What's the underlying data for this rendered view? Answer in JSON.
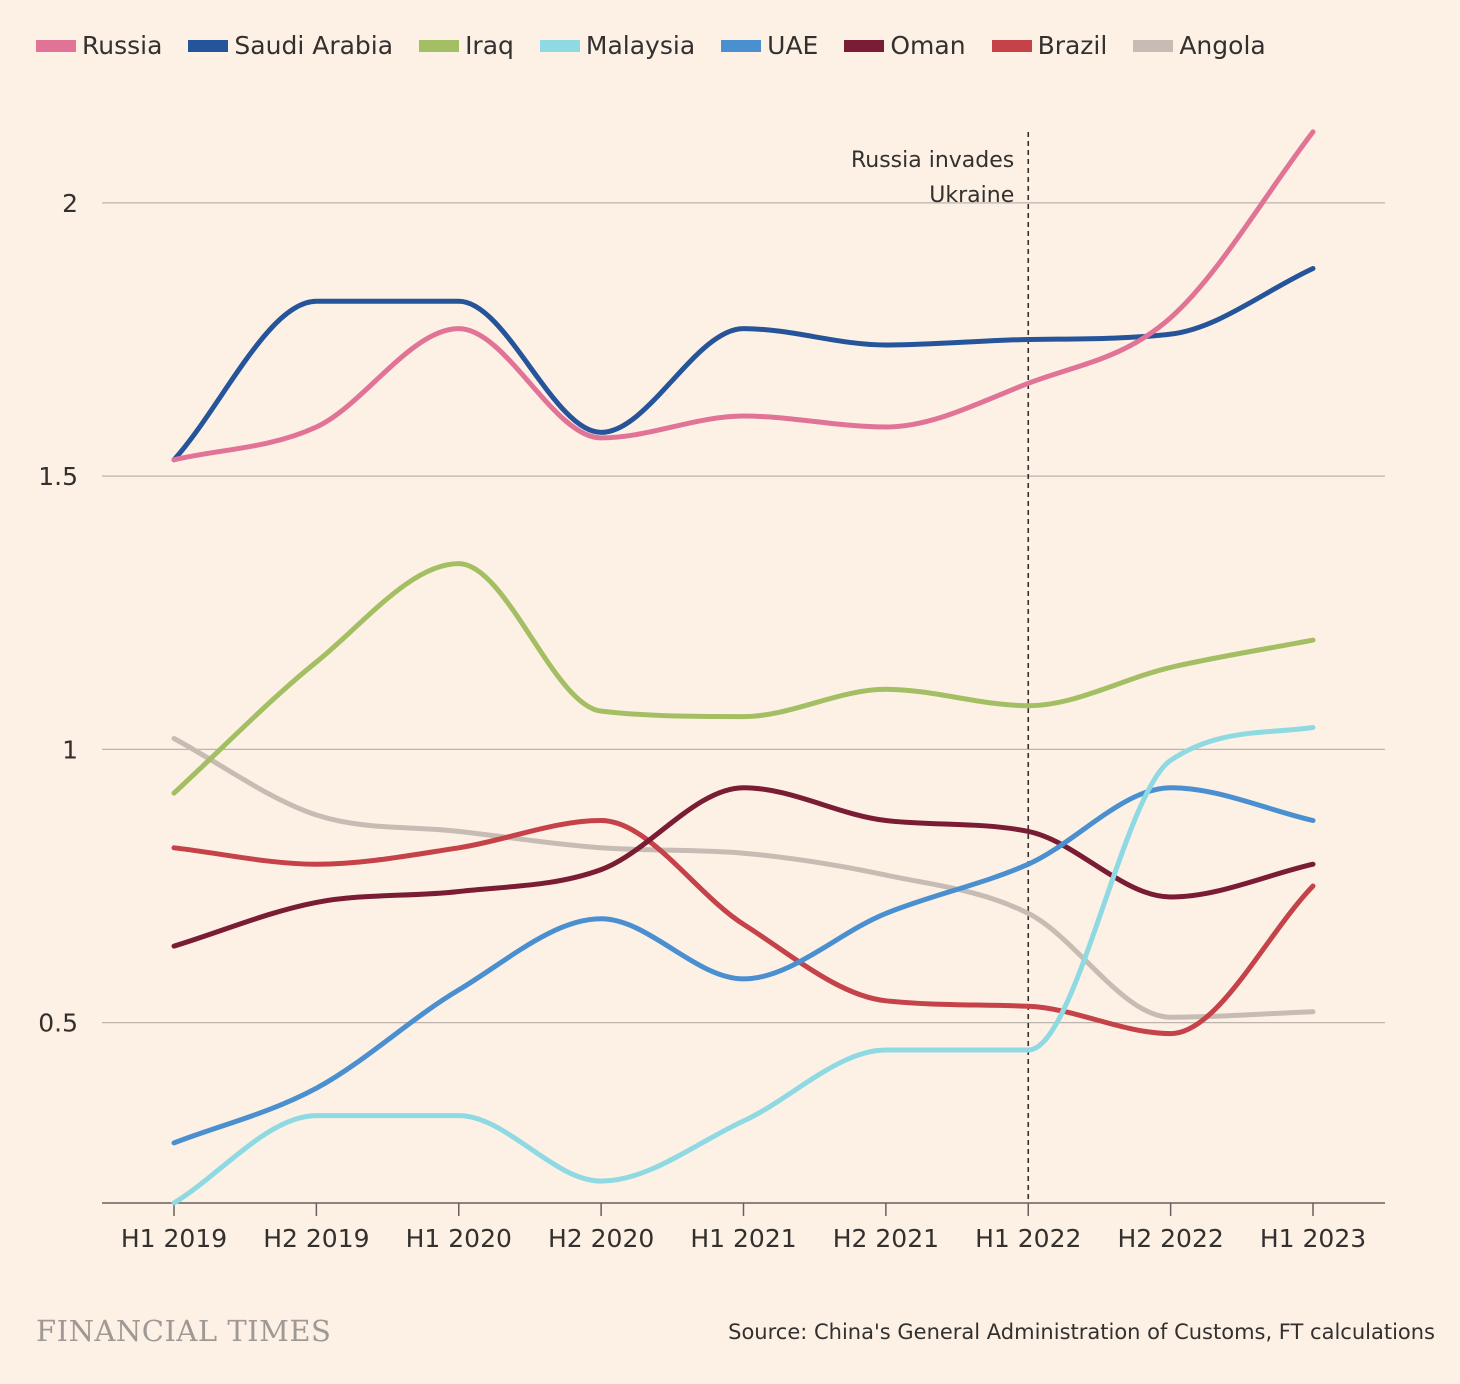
{
  "colors": {
    "background": "#fdf1e6",
    "grid": "#bcb4ad",
    "axis": "#66605c",
    "text": "#33302e"
  },
  "chart_data": {
    "type": "line",
    "categories": [
      "H1 2019",
      "H2 2019",
      "H1 2020",
      "H2 2020",
      "H1 2021",
      "H2 2021",
      "H1 2022",
      "H2 2022",
      "H1 2023"
    ],
    "ylim": [
      0.17,
      2.17
    ],
    "yticks": [
      0.5,
      1,
      1.5,
      2
    ],
    "ytick_labels": [
      "0.5",
      "1",
      "1.5",
      "2"
    ],
    "grid": true,
    "legend_position": "top",
    "series": [
      {
        "name": "Russia",
        "color": "#e07396",
        "values": [
          1.53,
          1.59,
          1.77,
          1.57,
          1.61,
          1.59,
          1.67,
          1.79,
          2.13
        ]
      },
      {
        "name": "Saudi Arabia",
        "color": "#26549a",
        "values": [
          1.53,
          1.82,
          1.82,
          1.58,
          1.77,
          1.74,
          1.75,
          1.76,
          1.88
        ]
      },
      {
        "name": "Iraq",
        "color": "#a4bf63",
        "values": [
          0.92,
          1.16,
          1.34,
          1.07,
          1.06,
          1.11,
          1.08,
          1.15,
          1.2
        ]
      },
      {
        "name": "Malaysia",
        "color": "#8fd9e3",
        "values": [
          0.17,
          0.33,
          0.33,
          0.21,
          0.32,
          0.45,
          0.45,
          0.98,
          1.04
        ]
      },
      {
        "name": "UAE",
        "color": "#4a8fd0",
        "values": [
          0.28,
          0.38,
          0.56,
          0.69,
          0.58,
          0.7,
          0.79,
          0.93,
          0.87
        ]
      },
      {
        "name": "Oman",
        "color": "#7a1c34",
        "values": [
          0.64,
          0.72,
          0.74,
          0.78,
          0.93,
          0.87,
          0.85,
          0.73,
          0.79
        ]
      },
      {
        "name": "Brazil",
        "color": "#c54249",
        "values": [
          0.82,
          0.79,
          0.82,
          0.87,
          0.68,
          0.54,
          0.53,
          0.48,
          0.75
        ]
      },
      {
        "name": "Angola",
        "color": "#c6bcb4",
        "values": [
          1.02,
          0.88,
          0.85,
          0.82,
          0.81,
          0.77,
          0.7,
          0.51,
          0.52
        ]
      }
    ],
    "annotation": {
      "category": "H1 2022",
      "lines": [
        "Russia invades",
        "Ukraine"
      ]
    }
  },
  "footer": {
    "logo": "FINANCIAL TIMES",
    "source": "Source: China's General Administration of Customs, FT calculations"
  }
}
